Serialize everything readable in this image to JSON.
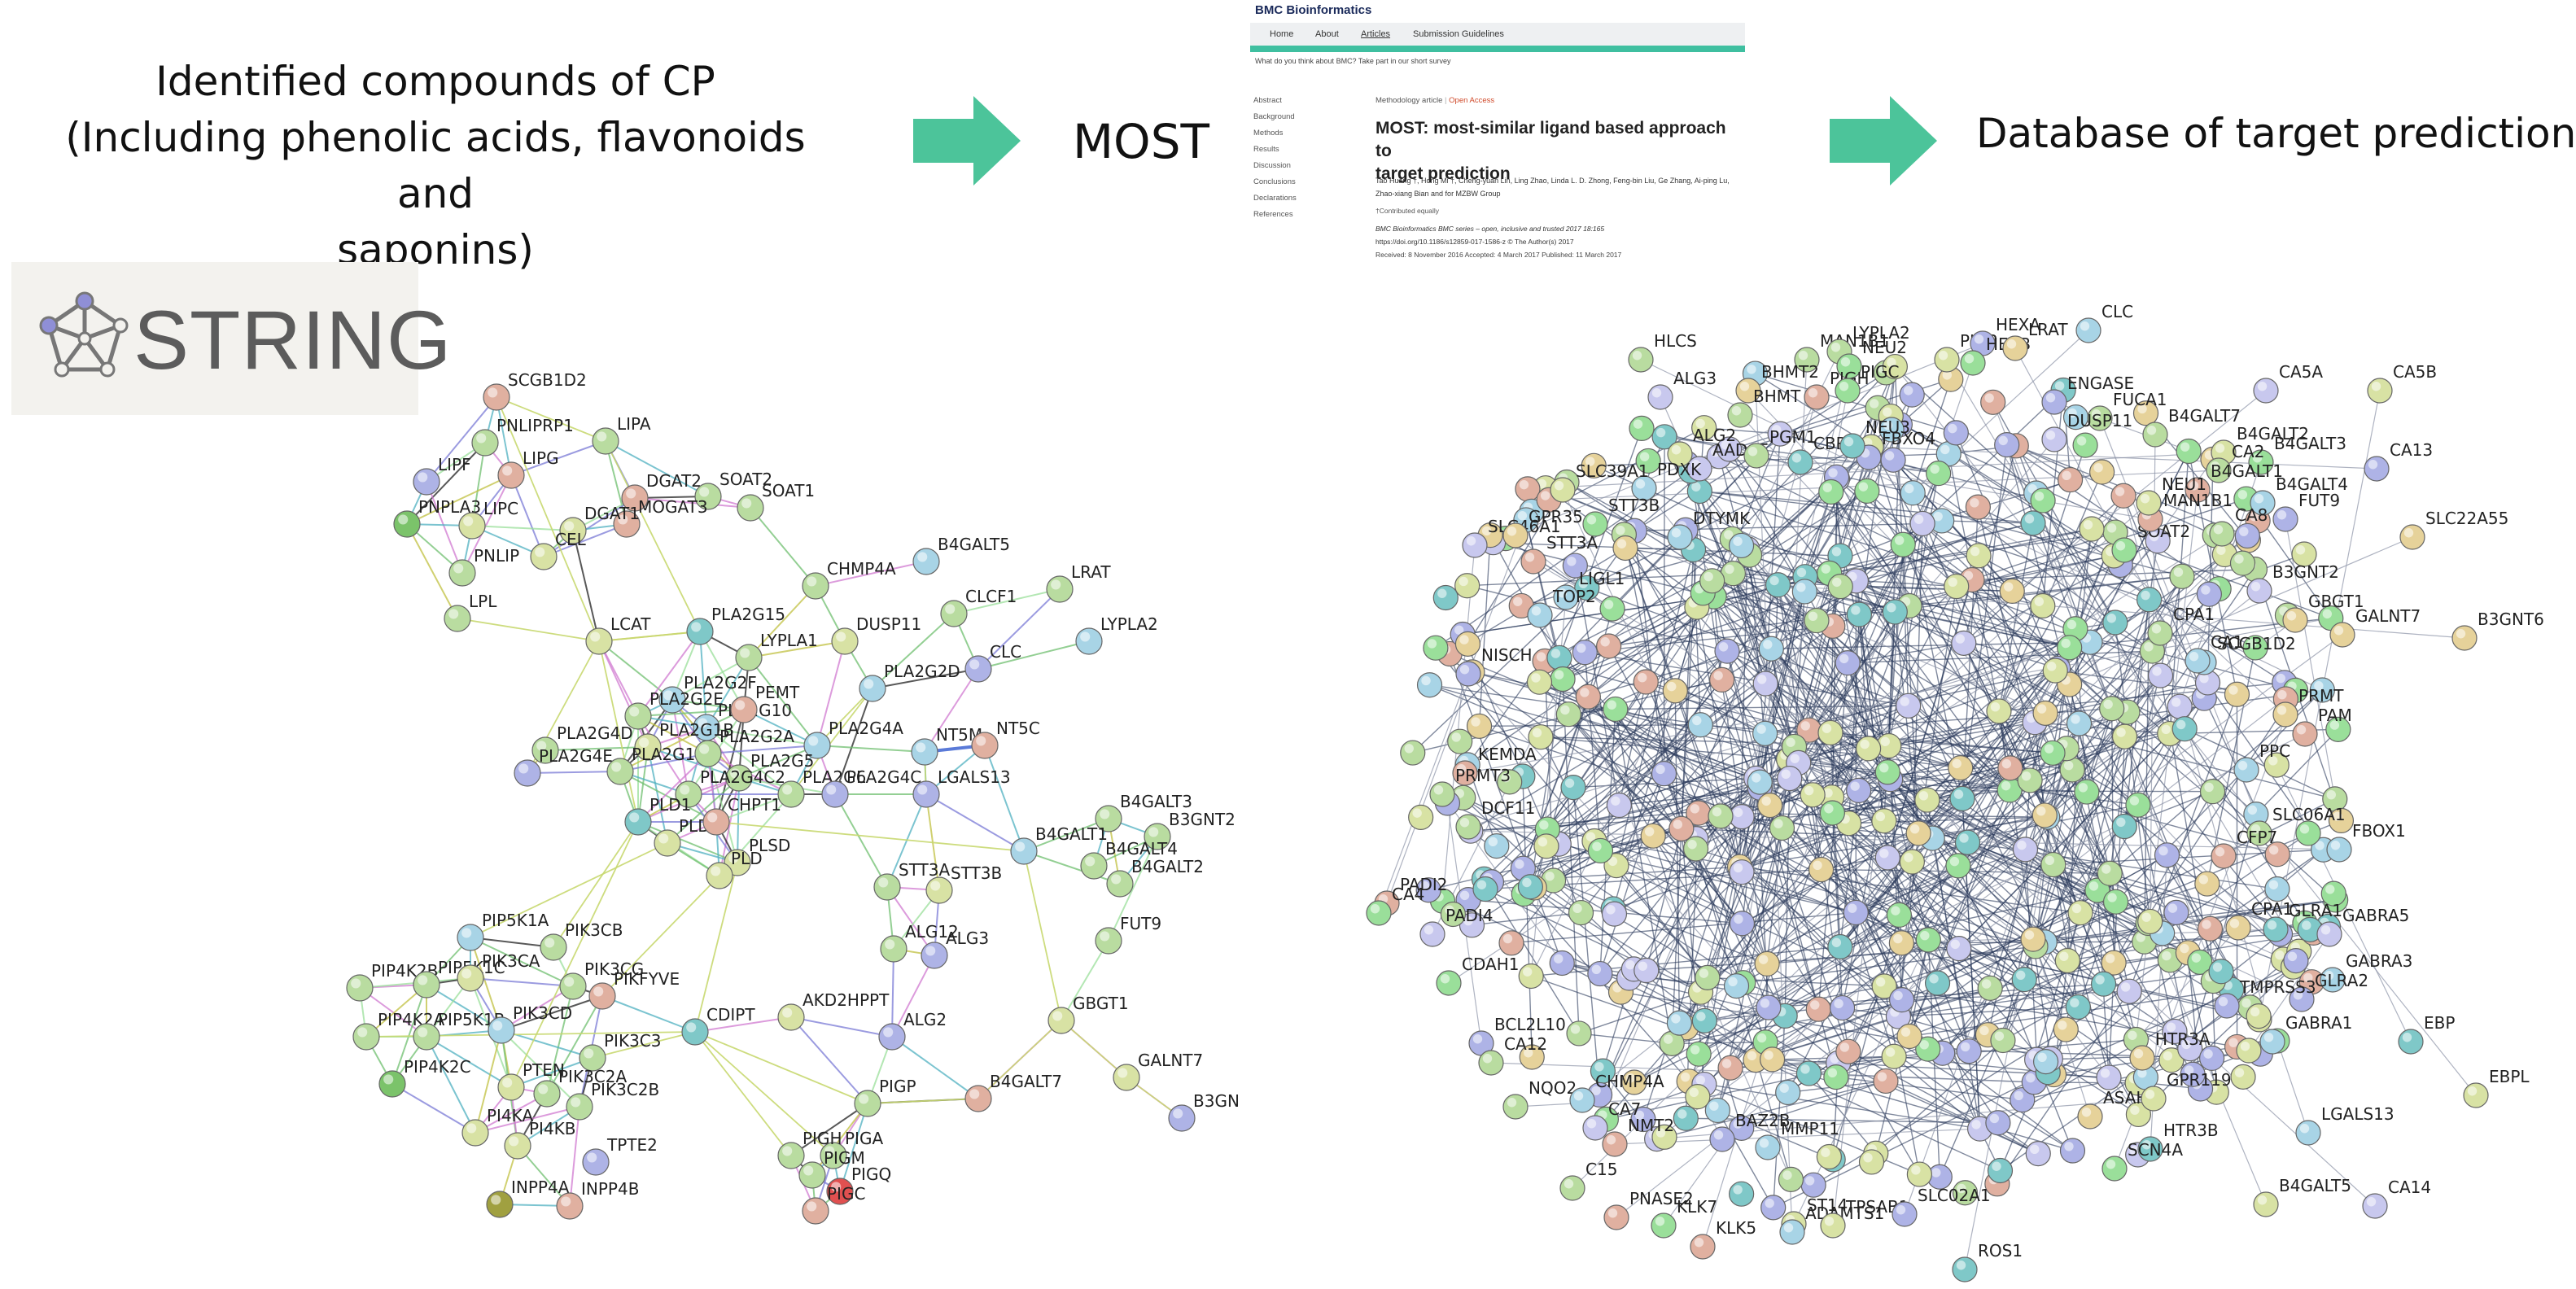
{
  "headings": {
    "compounds": [
      "Identified compounds of CP",
      "(Including phenolic acids, flavonoids and",
      "saponins)"
    ],
    "most": "MOST",
    "database": "Database of target prediction"
  },
  "string_logo": {
    "text": "STRING"
  },
  "article": {
    "journal": "BMC Bioinformatics",
    "nav": [
      "Home",
      "About",
      "Articles",
      "Submission Guidelines"
    ],
    "survey": "What do you think about BMC? Take part in our short survey",
    "sidebar": [
      "Abstract",
      "Background",
      "Methods",
      "Results",
      "Discussion",
      "Conclusions",
      "Declarations",
      "References"
    ],
    "type": "Methodology article",
    "access": "Open Access",
    "title_lines": [
      "MOST: most-similar ligand based approach to",
      "target prediction"
    ],
    "authors": [
      "Tao Huang †, Hong Mi †, Cheng-yuan Lin, Ling Zhao, Linda L. D. Zhong, Feng-bin Liu, Ge Zhang, Ai-ping Lu,",
      "Zhao-xiang Bian and for MZBW Group"
    ],
    "contributed": "†Contributed equally",
    "citation": "BMC Bioinformatics  BMC series – open, inclusive and trusted  2017  18:165",
    "doi": "https://doi.org/10.1186/s12859-017-1586-z  ©  The Author(s)  2017",
    "dates": "Received: 8 November 2016   Accepted: 4 March 2017   Published: 11 March 2017"
  },
  "colors": {
    "arrow": "#4cc49a",
    "edge_dark": "#2b3a5c"
  },
  "network_left": {
    "nodes": [
      [
        "SCGB1D2",
        305,
        244,
        "#e0b0a0"
      ],
      [
        "PNLIPRP1",
        298,
        272,
        "#b9dca0"
      ],
      [
        "LIPA",
        372,
        271,
        "#b9dca0"
      ],
      [
        "LIPF",
        262,
        296,
        "#aeb3e6"
      ],
      [
        "LIPG",
        314,
        292,
        "#e0b0a0"
      ],
      [
        "DGAT2",
        390,
        306,
        "#e0b0a0"
      ],
      [
        "SOAT2",
        435,
        305,
        "#b9dca0"
      ],
      [
        "SOAT1",
        461,
        312,
        "#b9dca0"
      ],
      [
        "PNPLA3",
        250,
        322,
        "#7bc36a"
      ],
      [
        "LIPC",
        290,
        323,
        "#d8e2a4"
      ],
      [
        "MOGAT3",
        385,
        322,
        "#e0b0a0"
      ],
      [
        "DGAT1",
        352,
        326,
        "#d8e2a4"
      ],
      [
        "CEL",
        334,
        342,
        "#d8e2a4"
      ],
      [
        "PNLIP",
        284,
        352,
        "#b9dca0"
      ],
      [
        "LPL",
        281,
        380,
        "#b9dca0"
      ],
      [
        "LCAT",
        368,
        394,
        "#d8e2a4"
      ],
      [
        "PLA2G15",
        430,
        388,
        "#7fc8c8"
      ],
      [
        "LYPLA1",
        460,
        404,
        "#b9dca0"
      ],
      [
        "PLA2G2D",
        536,
        423,
        "#a8d4e6"
      ],
      [
        "PLA2G2F",
        413,
        430,
        "#a8d4e6"
      ],
      [
        "PLA2G2E",
        392,
        440,
        "#b9dca0"
      ],
      [
        "PLA2G10",
        434,
        447,
        "#a8d4e6"
      ],
      [
        "PEMT",
        457,
        436,
        "#e0b0a0"
      ],
      [
        "PLA2G4D",
        335,
        461,
        "#b9dca0"
      ],
      [
        "PLA2G1B",
        398,
        459,
        "#d8e2a4"
      ],
      [
        "PLA2G12B",
        381,
        474,
        "#b9dca0"
      ],
      [
        "PLA2G2A",
        435,
        463,
        "#b9dca0"
      ],
      [
        "PLA2G4A",
        502,
        458,
        "#a8d4e6"
      ],
      [
        "PLA2G5",
        454,
        478,
        "#b9dca0"
      ],
      [
        "PLA2G6",
        486,
        488,
        "#b9dca0"
      ],
      [
        "PLA2G4C",
        513,
        488,
        "#aeb3e6"
      ],
      [
        "PLA2G4E",
        324,
        475,
        "#aeb3e6"
      ],
      [
        "PLA2G4C2",
        423,
        488,
        "#b9dca0"
      ],
      [
        "PLD1",
        392,
        505,
        "#7fc8c8"
      ],
      [
        "PLD2",
        410,
        518,
        "#d8e2a4"
      ],
      [
        "CHPT1",
        440,
        505,
        "#e0b0a0"
      ],
      [
        "PLSD",
        453,
        530,
        "#d8e2a4"
      ],
      [
        "PLD",
        442,
        538,
        "#d8e2a4"
      ],
      [
        "CHMP4A",
        501,
        360,
        "#b9dca0"
      ],
      [
        "DUSP11",
        519,
        394,
        "#d8e2a4"
      ],
      [
        "B4GALT5",
        569,
        345,
        "#a8d4e6"
      ],
      [
        "CLCF1",
        586,
        377,
        "#b9dca0"
      ],
      [
        "LRAT",
        651,
        362,
        "#b9dca0"
      ],
      [
        "LYPLA2",
        669,
        394,
        "#a8d4e6"
      ],
      [
        "CLC",
        601,
        411,
        "#aeb3e6"
      ],
      [
        "NT5M",
        568,
        462,
        "#a8d4e6"
      ],
      [
        "NT5C",
        605,
        458,
        "#e0b0a0"
      ],
      [
        "LGALS13",
        569,
        488,
        "#aeb3e6"
      ],
      [
        "B4GALT3",
        681,
        503,
        "#b9dca0"
      ],
      [
        "B3GNT2",
        711,
        514,
        "#b9dca0"
      ],
      [
        "B4GALT1",
        629,
        523,
        "#a8d4e6"
      ],
      [
        "B4GALT4",
        672,
        532,
        "#b9dca0"
      ],
      [
        "B4GALT2",
        688,
        543,
        "#b9dca0"
      ],
      [
        "FUT9",
        681,
        578,
        "#b9dca0"
      ],
      [
        "STT3A",
        545,
        545,
        "#b9dca0"
      ],
      [
        "STT3B",
        577,
        547,
        "#d8e2a4"
      ],
      [
        "ALG12",
        549,
        583,
        "#b9dca0"
      ],
      [
        "ALG3",
        574,
        587,
        "#aeb3e6"
      ],
      [
        "ALG2",
        548,
        637,
        "#aeb3e6"
      ],
      [
        "AKD2HPPT",
        486,
        625,
        "#d8e2a4"
      ],
      [
        "GBGT1",
        652,
        627,
        "#d8e2a4"
      ],
      [
        "GALNT7",
        692,
        662,
        "#d8e2a4"
      ],
      [
        "B3GN",
        726,
        687,
        "#aeb3e6"
      ],
      [
        "B4GALT7",
        601,
        675,
        "#e0b0a0"
      ],
      [
        "CDIPT",
        427,
        634,
        "#7fc8c8"
      ],
      [
        "PIGP",
        533,
        678,
        "#b9dca0"
      ],
      [
        "PIGA",
        512,
        710,
        "#b9dca0"
      ],
      [
        "PIGQ",
        516,
        732,
        "#e05050"
      ],
      [
        "PIGH",
        486,
        710,
        "#b9dca0"
      ],
      [
        "PIGM",
        499,
        722,
        "#b9dca0"
      ],
      [
        "PIGC",
        501,
        744,
        "#e0b0a0"
      ],
      [
        "PIP5K1A",
        289,
        576,
        "#a8d4e6"
      ],
      [
        "PIK3CB",
        340,
        582,
        "#b9dca0"
      ],
      [
        "PIP4K2B",
        221,
        607,
        "#b9dca0"
      ],
      [
        "PIP5K1C",
        262,
        605,
        "#b9dca0"
      ],
      [
        "PIK3CA",
        289,
        601,
        "#d8e2a4"
      ],
      [
        "PIK3CG",
        352,
        606,
        "#b9dca0"
      ],
      [
        "PIKFYVE",
        370,
        612,
        "#e0b0a0"
      ],
      [
        "PIP4K2A",
        225,
        637,
        "#b9dca0"
      ],
      [
        "PIP5K1B",
        262,
        637,
        "#b9dca0"
      ],
      [
        "PIK3CD",
        308,
        633,
        "#a8d4e6"
      ],
      [
        "PIK3C3",
        364,
        650,
        "#b9dca0"
      ],
      [
        "PIP4K2C",
        241,
        666,
        "#7bc36a"
      ],
      [
        "PTEN",
        314,
        668,
        "#d8e2a4"
      ],
      [
        "PIK3C2A",
        336,
        672,
        "#b9dca0"
      ],
      [
        "PIK3C2B",
        356,
        680,
        "#b9dca0"
      ],
      [
        "PI4KA",
        292,
        696,
        "#d8e2a4"
      ],
      [
        "PI4KB",
        318,
        704,
        "#d8e2a4"
      ],
      [
        "TPTE2",
        366,
        714,
        "#aeb3e6"
      ],
      [
        "INPP4A",
        307,
        740,
        "#a0a040"
      ],
      [
        "INPP4B",
        350,
        741,
        "#e0b0a0"
      ]
    ]
  },
  "network_right": {
    "labels": [
      [
        "CLC",
        1283,
        195
      ],
      [
        "HLCS",
        1008,
        213
      ],
      [
        "MAN1B1",
        1110,
        213
      ],
      [
        "LYPLA2",
        1130,
        208
      ],
      [
        "NEU2",
        1136,
        217
      ],
      [
        "ALG3",
        1020,
        236
      ],
      [
        "BHMT2",
        1074,
        232
      ],
      [
        "BHMT",
        1069,
        247
      ],
      [
        "PIGH",
        1116,
        236
      ],
      [
        "PIGC",
        1135,
        232
      ],
      [
        "PIGP",
        1196,
        213
      ],
      [
        "HEXA",
        1218,
        203
      ],
      [
        "HEXB",
        1212,
        215
      ],
      [
        "LRAT",
        1238,
        206
      ],
      [
        "ENGASE",
        1262,
        239
      ],
      [
        "FUCA1",
        1290,
        249
      ],
      [
        "DUSP11",
        1262,
        262
      ],
      [
        "B4GALT7",
        1324,
        259
      ],
      [
        "CA5A",
        1392,
        232
      ],
      [
        "CA5B",
        1462,
        232
      ],
      [
        "B4GALT2",
        1366,
        270
      ],
      [
        "B4GALT3",
        1389,
        276
      ],
      [
        "CA13",
        1460,
        280
      ],
      [
        "CA2",
        1363,
        281
      ],
      [
        "ALG2",
        1032,
        271
      ],
      [
        "AADAT",
        1044,
        280
      ],
      [
        "PGM1",
        1079,
        272
      ],
      [
        "CBR1",
        1106,
        276
      ],
      [
        "FBXO4",
        1148,
        273
      ],
      [
        "NEU3",
        1138,
        266
      ],
      [
        "PDXK",
        1010,
        292
      ],
      [
        "SLC39A1",
        960,
        293
      ],
      [
        "SLC46A1",
        906,
        327
      ],
      [
        "GPR35",
        931,
        321
      ],
      [
        "STT3A",
        942,
        337
      ],
      [
        "STT3B",
        980,
        314
      ],
      [
        "LIGL1",
        962,
        359
      ],
      [
        "TOP2",
        946,
        370
      ],
      [
        "DTYMK",
        1032,
        322
      ],
      [
        "B4GALT1",
        1350,
        293
      ],
      [
        "B4GALT4",
        1390,
        301
      ],
      [
        "FUT9",
        1404,
        311
      ],
      [
        "SLC22A55",
        1482,
        322
      ],
      [
        "SOAT2",
        1305,
        330
      ],
      [
        "MAN1B1",
        1321,
        311
      ],
      [
        "NEU1",
        1320,
        301
      ],
      [
        "CA8",
        1365,
        320
      ],
      [
        "B3GNT2",
        1388,
        355
      ],
      [
        "GBGT1",
        1410,
        373
      ],
      [
        "GALNT7",
        1439,
        382
      ],
      [
        "B3GNT6",
        1514,
        384
      ],
      [
        "SCGB1D2",
        1354,
        399
      ],
      [
        "CPA1",
        1327,
        381
      ],
      [
        "CA1",
        1350,
        398
      ],
      [
        "PRMT",
        1404,
        431
      ],
      [
        "PAM",
        1416,
        443
      ],
      [
        "PPC",
        1380,
        465
      ],
      [
        "NISCH",
        902,
        406
      ],
      [
        "KEMDA",
        900,
        467
      ],
      [
        "PRMT3",
        886,
        480
      ],
      [
        "DCF11",
        902,
        500
      ],
      [
        "PADI2",
        852,
        547
      ],
      [
        "CA4",
        847,
        553
      ],
      [
        "PADI4",
        880,
        566
      ],
      [
        "CDAH1",
        890,
        596
      ],
      [
        "BCL2L10",
        910,
        633
      ],
      [
        "CA12",
        916,
        645
      ],
      [
        "NQO2",
        931,
        672
      ],
      [
        "CHMP4A",
        972,
        668
      ],
      [
        "CA7",
        980,
        685
      ],
      [
        "NMT2",
        992,
        695
      ],
      [
        "C15",
        966,
        722
      ],
      [
        "SLC06A1",
        1388,
        504
      ],
      [
        "CFP7",
        1366,
        518
      ],
      [
        "FBOX1",
        1437,
        514
      ],
      [
        "CPA1",
        1375,
        562
      ],
      [
        "GLRA1",
        1398,
        563
      ],
      [
        "GABRA5",
        1431,
        566
      ],
      [
        "GABRA3",
        1433,
        594
      ],
      [
        "GLRA2",
        1414,
        606
      ],
      [
        "TMPRSS3",
        1368,
        610
      ],
      [
        "GABRA1",
        1396,
        632
      ],
      [
        "EBP",
        1481,
        632
      ],
      [
        "EBPL",
        1521,
        665
      ],
      [
        "LGALS13",
        1418,
        688
      ],
      [
        "B4GALT5",
        1392,
        732
      ],
      [
        "CA14",
        1459,
        733
      ],
      [
        "PNASE2",
        993,
        740
      ],
      [
        "KLK7",
        1022,
        745
      ],
      [
        "KLK5",
        1046,
        758
      ],
      [
        "ST14",
        1102,
        744
      ],
      [
        "ADAMTS1",
        1101,
        749
      ],
      [
        "TPSAB1",
        1126,
        745
      ],
      [
        "SLC02A1",
        1170,
        738
      ],
      [
        "ROS1",
        1207,
        772
      ],
      [
        "HTR3A",
        1316,
        642
      ],
      [
        "HTR3B",
        1321,
        698
      ],
      [
        "ASAH1",
        1284,
        678
      ],
      [
        "GPR119",
        1323,
        667
      ],
      [
        "SCN4A",
        1299,
        710
      ],
      [
        "BAZ2B",
        1058,
        692
      ],
      [
        "MMP11",
        1086,
        697
      ]
    ]
  }
}
